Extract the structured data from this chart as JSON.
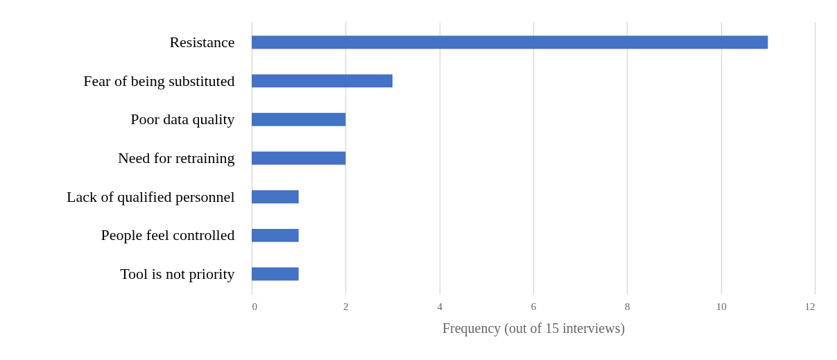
{
  "chart_data": {
    "type": "bar",
    "orientation": "horizontal",
    "xlabel": "Frequency (out of 15 interviews)",
    "categories": [
      "Resistance",
      "Fear of being substituted",
      "Poor data quality",
      "Need for retraining",
      "Lack of qualified personnel",
      "People feel controlled",
      "Tool is not priority"
    ],
    "values": [
      11,
      3,
      2,
      2,
      1,
      1,
      1
    ],
    "color": "#4472c4",
    "xlim": [
      0,
      12
    ],
    "xticks": [
      0,
      2,
      4,
      6,
      8,
      10,
      12
    ],
    "grid": "x"
  }
}
